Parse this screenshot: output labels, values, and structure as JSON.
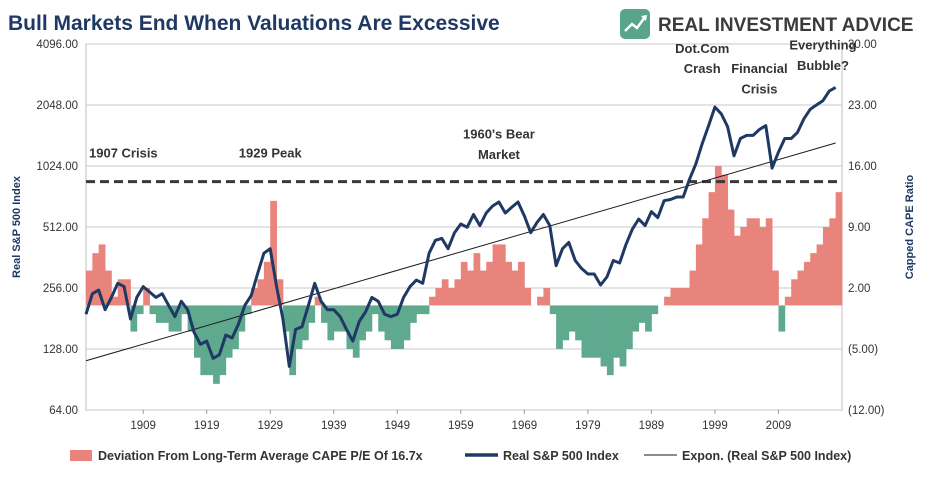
{
  "chart_data": {
    "type": "area+line",
    "title": "Bull Markets End When Valuations Are Excessive",
    "brand": "REAL INVESTMENT ADVICE",
    "x_ticks": [
      "1909",
      "1919",
      "1929",
      "1939",
      "1949",
      "1959",
      "1969",
      "1979",
      "1989",
      "1999",
      "2009"
    ],
    "xlim": [
      1900,
      2019
    ],
    "left_axis": {
      "label": "Real S&P 500 Index",
      "scale": "log2",
      "ticks": [
        "4096.00",
        "2048.00",
        "1024.00",
        "512.00",
        "256.00",
        "128.00",
        "64.00"
      ],
      "values": [
        4096,
        2048,
        1024,
        512,
        256,
        128,
        64
      ],
      "ylim": [
        64,
        4096
      ]
    },
    "right_axis": {
      "label": "Capped CAPE Ratio",
      "ticks": [
        "30.00",
        "23.00",
        "16.00",
        "9.00",
        "2.00",
        "(5.00)",
        "(12.00)"
      ],
      "values": [
        30,
        23,
        16,
        9,
        2,
        -5,
        -12
      ],
      "ylim": [
        -12,
        30
      ]
    },
    "average_cape_line": {
      "value": 14.2,
      "style": "dashed"
    },
    "annotations": [
      {
        "text": "1907 Crisis",
        "x": 1900,
        "y": 1125
      },
      {
        "text": "1929 Peak",
        "x": 1929,
        "y": 1130
      },
      {
        "text": "1960's Bear",
        "x": 1965,
        "y": 1400
      },
      {
        "text": "Market",
        "x": 1965,
        "y": 1110
      },
      {
        "text": "Dot.Com",
        "x": 1997,
        "y": 3700
      },
      {
        "text": "Crash",
        "x": 1997,
        "y": 2950
      },
      {
        "text": "Financial",
        "x": 2006,
        "y": 2940
      },
      {
        "text": "Crisis",
        "x": 2006,
        "y": 2330
      },
      {
        "text": "Everything",
        "x": 2016,
        "y": 3850
      },
      {
        "text": "Bubble?",
        "x": 2016,
        "y": 3050
      }
    ],
    "series": [
      {
        "name": "Deviation From Long-Term Average CAPE P/E Of 16.7x",
        "axis": "right",
        "style": "area",
        "baseline": 0,
        "color_positive": "#e8847c",
        "color_negative": "#5fa98f",
        "x": [
          1900,
          1901,
          1902,
          1903,
          1904,
          1905,
          1906,
          1907,
          1908,
          1909,
          1910,
          1911,
          1912,
          1913,
          1914,
          1915,
          1916,
          1917,
          1918,
          1919,
          1920,
          1921,
          1922,
          1923,
          1924,
          1925,
          1926,
          1927,
          1928,
          1929,
          1930,
          1931,
          1932,
          1933,
          1934,
          1935,
          1936,
          1937,
          1938,
          1939,
          1940,
          1941,
          1942,
          1943,
          1944,
          1945,
          1946,
          1947,
          1948,
          1949,
          1950,
          1951,
          1952,
          1953,
          1954,
          1955,
          1956,
          1957,
          1958,
          1959,
          1960,
          1961,
          1962,
          1963,
          1964,
          1965,
          1966,
          1967,
          1968,
          1969,
          1970,
          1971,
          1972,
          1973,
          1974,
          1975,
          1976,
          1977,
          1978,
          1979,
          1980,
          1981,
          1982,
          1983,
          1984,
          1985,
          1986,
          1987,
          1988,
          1989,
          1990,
          1991,
          1992,
          1993,
          1994,
          1995,
          1996,
          1997,
          1998,
          1999,
          2000,
          2001,
          2002,
          2003,
          2004,
          2005,
          2006,
          2007,
          2008,
          2009,
          2010,
          2011,
          2012,
          2013,
          2014,
          2015,
          2016,
          2017,
          2018
        ],
        "values": [
          4,
          6,
          7,
          4,
          1,
          3,
          3,
          -3,
          -1,
          2,
          -1,
          -2,
          -2,
          -3,
          -3,
          -1,
          -3,
          -6,
          -8,
          -8,
          -9,
          -8,
          -6,
          -5,
          -3,
          -1,
          2,
          3,
          5,
          12,
          3,
          -3,
          -8,
          -5,
          -4,
          -2,
          1,
          -2,
          -4,
          -3,
          -3,
          -5,
          -6,
          -4,
          -3,
          -1,
          -3,
          -4,
          -5,
          -5,
          -4,
          -2,
          -1,
          -1,
          1,
          2,
          3,
          2,
          3,
          5,
          4,
          6,
          4,
          5,
          7,
          7,
          5,
          4,
          5,
          2,
          0,
          1,
          2,
          -1,
          -5,
          -4,
          -3,
          -4,
          -6,
          -6,
          -6,
          -7,
          -8,
          -6,
          -7,
          -5,
          -3,
          -2,
          -3,
          -1,
          0,
          1,
          2,
          2,
          2,
          4,
          7,
          10,
          13,
          16,
          15,
          11,
          8,
          9,
          10,
          10,
          9,
          10,
          4,
          -3,
          1,
          3,
          4,
          5,
          6,
          7,
          9,
          10,
          13
        ]
      },
      {
        "name": "Real S&P 500 Index",
        "axis": "left",
        "style": "line",
        "color": "#1f3864",
        "x": [
          1900,
          1901,
          1902,
          1903,
          1904,
          1905,
          1906,
          1907,
          1908,
          1909,
          1910,
          1911,
          1912,
          1913,
          1914,
          1915,
          1916,
          1917,
          1918,
          1919,
          1920,
          1921,
          1922,
          1923,
          1924,
          1925,
          1926,
          1927,
          1928,
          1929,
          1930,
          1931,
          1932,
          1933,
          1934,
          1935,
          1936,
          1937,
          1938,
          1939,
          1940,
          1941,
          1942,
          1943,
          1944,
          1945,
          1946,
          1947,
          1948,
          1949,
          1950,
          1951,
          1952,
          1953,
          1954,
          1955,
          1956,
          1957,
          1958,
          1959,
          1960,
          1961,
          1962,
          1963,
          1964,
          1965,
          1966,
          1967,
          1968,
          1969,
          1970,
          1971,
          1972,
          1973,
          1974,
          1975,
          1976,
          1977,
          1978,
          1979,
          1980,
          1981,
          1982,
          1983,
          1984,
          1985,
          1986,
          1987,
          1988,
          1989,
          1990,
          1991,
          1992,
          1993,
          1994,
          1995,
          1996,
          1997,
          1998,
          1999,
          2000,
          2001,
          2002,
          2003,
          2004,
          2005,
          2006,
          2007,
          2008,
          2009,
          2010,
          2011,
          2012,
          2013,
          2014,
          2015,
          2016,
          2017,
          2018
        ],
        "values": [
          190,
          240,
          250,
          200,
          230,
          270,
          260,
          180,
          230,
          260,
          245,
          230,
          240,
          210,
          185,
          220,
          200,
          155,
          135,
          140,
          115,
          120,
          150,
          145,
          170,
          210,
          235,
          300,
          380,
          400,
          260,
          180,
          105,
          160,
          165,
          210,
          270,
          220,
          200,
          200,
          185,
          160,
          140,
          175,
          195,
          230,
          220,
          190,
          185,
          190,
          230,
          260,
          280,
          270,
          380,
          440,
          450,
          400,
          480,
          530,
          510,
          590,
          520,
          600,
          650,
          680,
          600,
          640,
          680,
          580,
          480,
          540,
          590,
          520,
          330,
          400,
          430,
          350,
          320,
          300,
          300,
          265,
          290,
          350,
          340,
          420,
          500,
          560,
          520,
          610,
          570,
          690,
          700,
          720,
          720,
          880,
          1050,
          1320,
          1620,
          2000,
          1850,
          1600,
          1150,
          1400,
          1450,
          1450,
          1550,
          1620,
          1000,
          1200,
          1400,
          1400,
          1500,
          1750,
          1950,
          2050,
          2150,
          2400,
          2500
        ]
      },
      {
        "name": "Expon. (Real S&P 500 Index)",
        "axis": "left",
        "style": "trendline",
        "color": "#1a1a1a",
        "x": [
          1900,
          2018
        ],
        "values": [
          112,
          1330
        ]
      }
    ],
    "legend": {
      "placement": "bottom",
      "items": [
        "Deviation From Long-Term Average CAPE P/E Of 16.7x",
        "Real S&P 500 Index",
        "Expon. (Real S&P 500 Index)"
      ]
    },
    "grid": "horizontal"
  }
}
